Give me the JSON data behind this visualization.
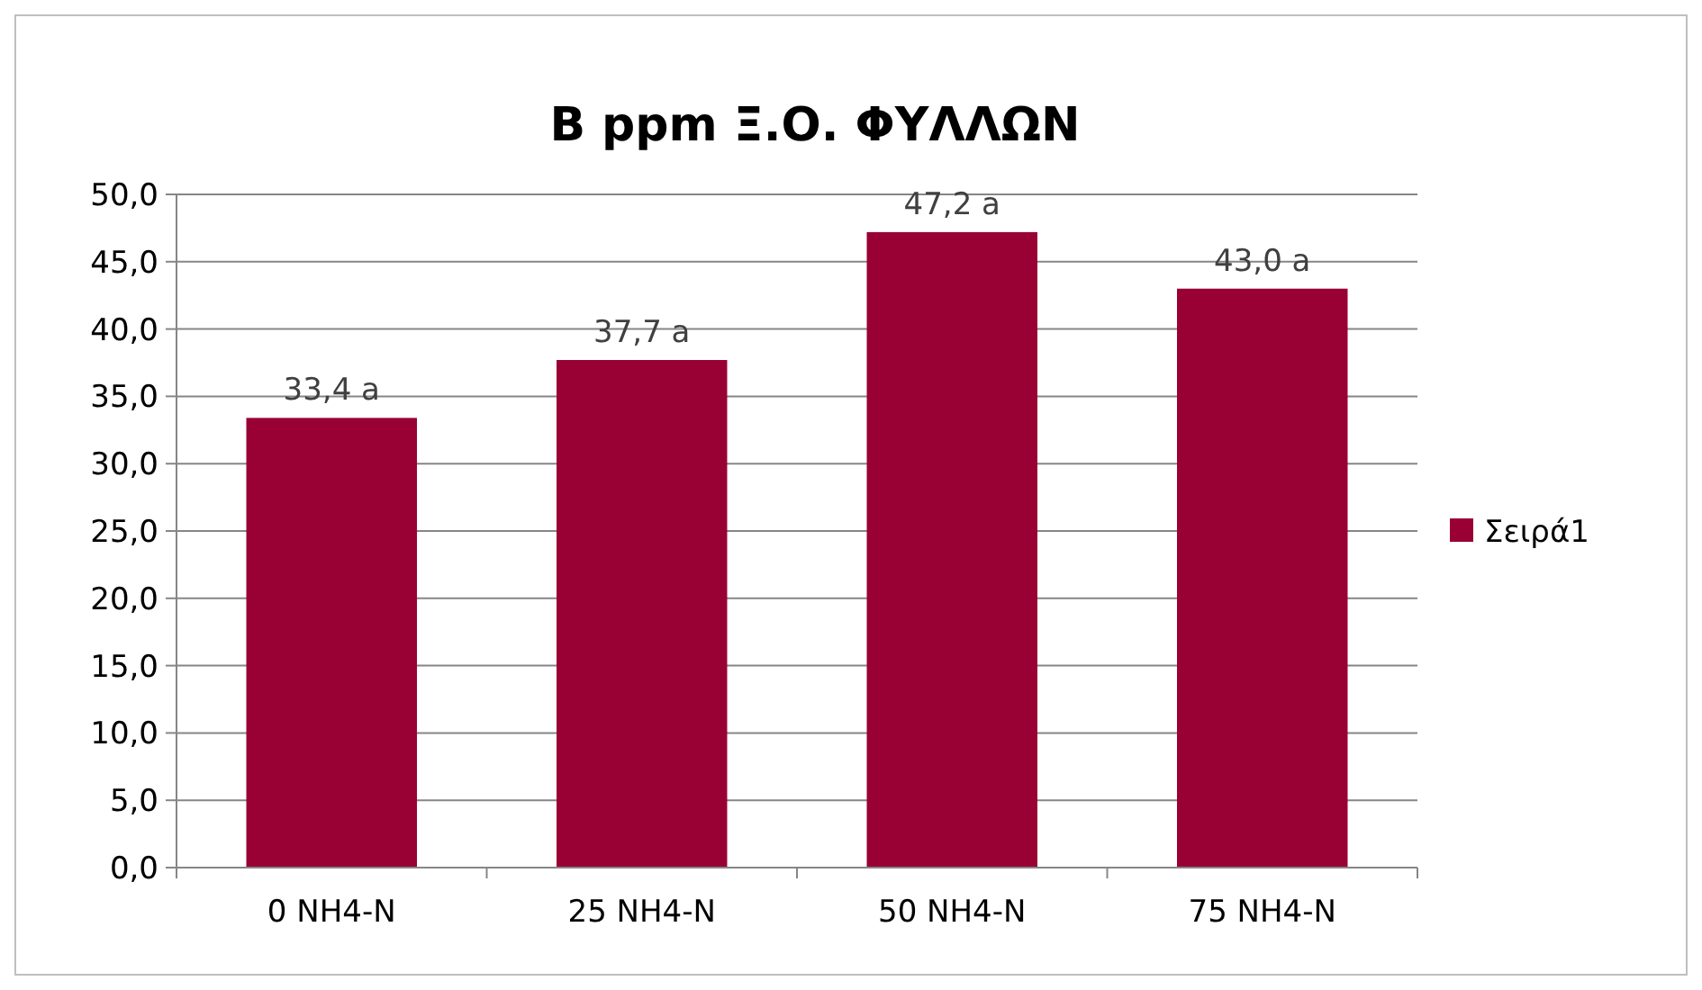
{
  "chart_data": {
    "type": "bar",
    "title": "B ppm Ξ.Ο. ΦΥΛΛΩΝ",
    "categories": [
      "0 NH4-N",
      "25 NH4-N",
      "50 NH4-N",
      "75 NH4-N"
    ],
    "series": [
      {
        "name": "Σειρά1",
        "color": "#990033",
        "values": [
          33.4,
          37.7,
          47.2,
          43.0
        ],
        "value_labels": [
          "33,4 a",
          "37,7 a",
          "47,2 a",
          "43,0 a"
        ]
      }
    ],
    "ylim": [
      0,
      50
    ],
    "yticks": [
      {
        "value": 0,
        "label": "0,0"
      },
      {
        "value": 5,
        "label": "5,0"
      },
      {
        "value": 10,
        "label": "10,0"
      },
      {
        "value": 15,
        "label": "15,0"
      },
      {
        "value": 20,
        "label": "20,0"
      },
      {
        "value": 25,
        "label": "25,0"
      },
      {
        "value": 30,
        "label": "30,0"
      },
      {
        "value": 35,
        "label": "35,0"
      },
      {
        "value": 40,
        "label": "40,0"
      },
      {
        "value": 45,
        "label": "45,0"
      },
      {
        "value": 50,
        "label": "50,0"
      }
    ],
    "grid": "y",
    "legend": "right"
  }
}
